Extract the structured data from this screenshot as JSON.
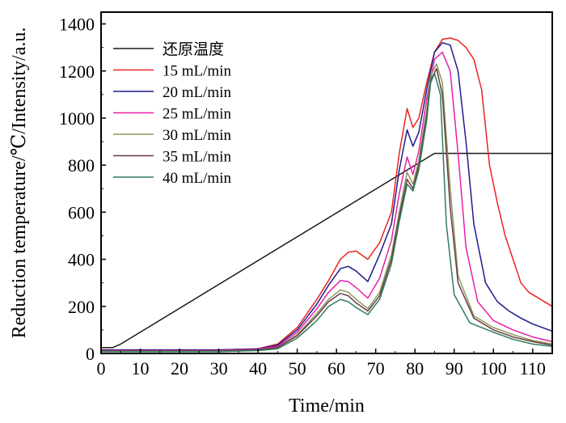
{
  "chart_data": {
    "type": "line",
    "xlabel": "Time/min",
    "ylabel": "Reduction temperature/℃/Intensity/a.u.",
    "xlim": [
      0,
      115
    ],
    "ylim": [
      0,
      1450
    ],
    "x_ticks": [
      0,
      10,
      20,
      30,
      40,
      50,
      60,
      70,
      80,
      90,
      100,
      110
    ],
    "x_tick_labels": [
      "0",
      "10",
      "20",
      "30",
      "40",
      "50",
      "60",
      "70",
      "80",
      "90",
      "100",
      "110"
    ],
    "y_ticks": [
      0,
      200,
      400,
      600,
      800,
      1000,
      1200,
      1400
    ],
    "y_tick_labels": [
      "0",
      "200",
      "400",
      "600",
      "800",
      "1000",
      "1200",
      "1400"
    ],
    "grid": false,
    "legend_position": "top-left",
    "series": [
      {
        "name": "还原温度",
        "color": "#1a1a1a",
        "x": [
          0,
          3,
          5,
          85,
          115
        ],
        "y": [
          25,
          25,
          40,
          850,
          850
        ]
      },
      {
        "name": "15 mL/min",
        "color": "#e8241f",
        "x": [
          0,
          30,
          40,
          45,
          50,
          55,
          58,
          61,
          63,
          65,
          68,
          71,
          74,
          76,
          78,
          79.5,
          81,
          83,
          85,
          87,
          89,
          91,
          93,
          95,
          97,
          99,
          101,
          103,
          105,
          107,
          109,
          111,
          115
        ],
        "y": [
          15,
          15,
          20,
          40,
          110,
          230,
          310,
          400,
          430,
          435,
          400,
          470,
          600,
          850,
          1040,
          960,
          1000,
          1150,
          1280,
          1335,
          1340,
          1330,
          1300,
          1250,
          1120,
          800,
          640,
          500,
          400,
          300,
          260,
          240,
          200
        ]
      },
      {
        "name": "20 mL/min",
        "color": "#1c1c8c",
        "x": [
          0,
          30,
          40,
          45,
          50,
          55,
          58,
          61,
          63,
          65,
          68,
          71,
          74,
          76,
          78,
          79.5,
          81,
          83,
          85,
          87,
          89,
          91,
          93,
          95,
          98,
          101,
          104,
          107,
          110,
          115
        ],
        "y": [
          15,
          15,
          20,
          35,
          100,
          210,
          290,
          360,
          370,
          350,
          305,
          420,
          550,
          780,
          950,
          880,
          940,
          1120,
          1280,
          1320,
          1310,
          1200,
          900,
          550,
          300,
          220,
          180,
          150,
          125,
          95
        ]
      },
      {
        "name": "25 mL/min",
        "color": "#e81fa6",
        "x": [
          0,
          30,
          40,
          45,
          50,
          55,
          58,
          61,
          63,
          65,
          68,
          71,
          74,
          76,
          78,
          79.5,
          81,
          83,
          85,
          87,
          89,
          91,
          93,
          96,
          100,
          105,
          110,
          115
        ],
        "y": [
          12,
          12,
          18,
          30,
          90,
          190,
          260,
          310,
          305,
          280,
          235,
          320,
          480,
          680,
          835,
          760,
          860,
          1080,
          1250,
          1280,
          1200,
          850,
          450,
          220,
          140,
          100,
          70,
          50
        ]
      },
      {
        "name": "30 mL/min",
        "color": "#8a9a5b",
        "x": [
          0,
          30,
          40,
          45,
          50,
          55,
          58,
          61,
          63,
          65,
          68,
          71,
          74,
          76,
          78,
          79.5,
          81,
          83,
          84,
          85.5,
          87,
          89,
          91,
          95,
          100,
          105,
          110,
          115
        ],
        "y": [
          10,
          10,
          15,
          25,
          80,
          170,
          230,
          270,
          260,
          230,
          190,
          260,
          420,
          600,
          770,
          720,
          820,
          1030,
          1180,
          1230,
          1150,
          700,
          330,
          160,
          110,
          80,
          55,
          40
        ]
      },
      {
        "name": "35 mL/min",
        "color": "#6b3a45",
        "x": [
          0,
          30,
          40,
          45,
          50,
          55,
          58,
          61,
          63,
          65,
          68,
          71,
          74,
          76,
          78,
          79.5,
          81,
          83,
          84,
          85.5,
          87,
          89,
          91,
          95,
          100,
          105,
          110,
          115
        ],
        "y": [
          10,
          10,
          15,
          25,
          75,
          160,
          220,
          255,
          245,
          215,
          180,
          245,
          400,
          580,
          740,
          700,
          800,
          1010,
          1160,
          1210,
          1100,
          620,
          300,
          150,
          100,
          70,
          50,
          35
        ]
      },
      {
        "name": "40 mL/min",
        "color": "#2e7d5a",
        "x": [
          0,
          30,
          40,
          45,
          50,
          55,
          58,
          61,
          63,
          65,
          68,
          71,
          74,
          76,
          78,
          79.5,
          81,
          83,
          84,
          85,
          86.5,
          88,
          90,
          94,
          100,
          105,
          110,
          115
        ],
        "y": [
          8,
          8,
          12,
          20,
          65,
          140,
          200,
          230,
          220,
          195,
          165,
          230,
          380,
          560,
          720,
          690,
          780,
          990,
          1150,
          1190,
          1100,
          550,
          250,
          130,
          90,
          60,
          40,
          30
        ]
      }
    ]
  }
}
